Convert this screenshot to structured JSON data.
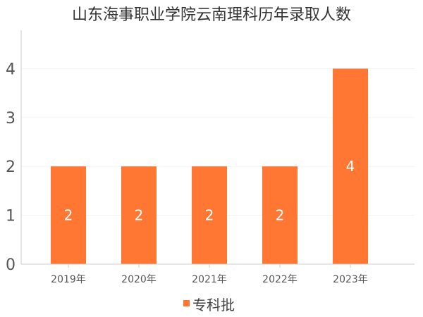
{
  "chart_data": {
    "type": "bar",
    "title": "山东海事职业学院云南理科历年录取人数",
    "categories": [
      "2019年",
      "2020年",
      "2021年",
      "2022年",
      "2023年"
    ],
    "series": [
      {
        "name": "专科批",
        "values": [
          2,
          2,
          2,
          2,
          4
        ],
        "color": "#ff7733"
      }
    ],
    "yticks": [
      "0",
      "1",
      "2",
      "3",
      "4"
    ],
    "ylim": [
      0,
      4.9
    ],
    "xlabel": "",
    "ylabel": "",
    "grid": true,
    "legend_position": "bottom-center",
    "data_labels": [
      "2",
      "2",
      "2",
      "2",
      "4"
    ]
  }
}
